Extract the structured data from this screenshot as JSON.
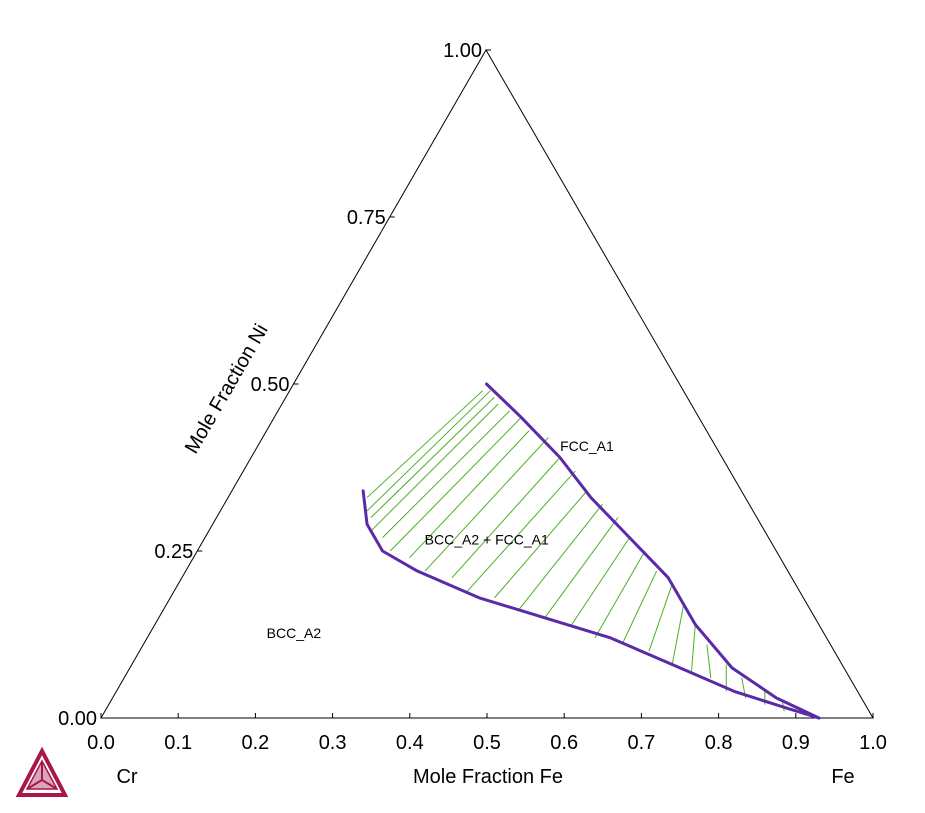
{
  "chart_data": {
    "type": "ternary",
    "components": {
      "left": "Cr",
      "right": "Fe",
      "top": "Ni"
    },
    "bottom_axis": {
      "label": "Mole Fraction Fe",
      "ticks": [
        "0.0",
        "0.1",
        "0.2",
        "0.3",
        "0.4",
        "0.5",
        "0.6",
        "0.7",
        "0.8",
        "0.9",
        "1.0"
      ]
    },
    "left_axis": {
      "label": "Mole Fraction Ni",
      "ticks": [
        "0.00",
        "0.25",
        "0.50",
        "0.75",
        "1.00"
      ]
    },
    "regions": [
      {
        "label": "FCC_A1",
        "fe": 0.43,
        "ni": 0.4
      },
      {
        "label": "BCC_A2 + FCC_A1",
        "fe": 0.37,
        "ni": 0.26
      },
      {
        "label": "BCC_A2",
        "fe": 0.19,
        "ni": 0.12
      }
    ],
    "series": [
      {
        "name": "FCC_A1 phase boundary",
        "color": "#5b2aa8",
        "points": [
          [
            0.25,
            0.5
          ],
          [
            0.32,
            0.45
          ],
          [
            0.4,
            0.39
          ],
          [
            0.47,
            0.33
          ],
          [
            0.55,
            0.27
          ],
          [
            0.63,
            0.21
          ],
          [
            0.7,
            0.14
          ],
          [
            0.78,
            0.075
          ],
          [
            0.86,
            0.03
          ],
          [
            0.93,
            0.0
          ]
        ]
      },
      {
        "name": "BCC_A2 phase boundary",
        "color": "#5b2aa8",
        "points": [
          [
            0.17,
            0.34
          ],
          [
            0.2,
            0.29
          ],
          [
            0.24,
            0.25
          ],
          [
            0.3,
            0.22
          ],
          [
            0.4,
            0.18
          ],
          [
            0.5,
            0.15
          ],
          [
            0.6,
            0.12
          ],
          [
            0.7,
            0.08
          ],
          [
            0.8,
            0.04
          ],
          [
            0.88,
            0.015
          ],
          [
            0.93,
            0.0
          ]
        ]
      }
    ],
    "tie_line_color": "#4caf28",
    "tie_lines": [
      [
        [
          0.18,
          0.33
        ],
        [
          0.25,
          0.49
        ]
      ],
      [
        [
          0.19,
          0.31
        ],
        [
          0.26,
          0.49
        ]
      ],
      [
        [
          0.2,
          0.3
        ],
        [
          0.27,
          0.48
        ]
      ],
      [
        [
          0.21,
          0.28
        ],
        [
          0.28,
          0.47
        ]
      ],
      [
        [
          0.23,
          0.27
        ],
        [
          0.3,
          0.46
        ]
      ],
      [
        [
          0.25,
          0.25
        ],
        [
          0.32,
          0.45
        ]
      ],
      [
        [
          0.28,
          0.24
        ],
        [
          0.34,
          0.43
        ]
      ],
      [
        [
          0.31,
          0.22
        ],
        [
          0.37,
          0.42
        ]
      ],
      [
        [
          0.35,
          0.21
        ],
        [
          0.4,
          0.39
        ]
      ],
      [
        [
          0.38,
          0.19
        ],
        [
          0.43,
          0.37
        ]
      ],
      [
        [
          0.42,
          0.18
        ],
        [
          0.46,
          0.34
        ]
      ],
      [
        [
          0.46,
          0.16
        ],
        [
          0.49,
          0.32
        ]
      ],
      [
        [
          0.5,
          0.15
        ],
        [
          0.52,
          0.3
        ]
      ],
      [
        [
          0.54,
          0.14
        ],
        [
          0.55,
          0.27
        ]
      ],
      [
        [
          0.58,
          0.12
        ],
        [
          0.58,
          0.25
        ]
      ],
      [
        [
          0.62,
          0.11
        ],
        [
          0.61,
          0.22
        ]
      ],
      [
        [
          0.66,
          0.1
        ],
        [
          0.64,
          0.2
        ]
      ],
      [
        [
          0.7,
          0.08
        ],
        [
          0.67,
          0.17
        ]
      ],
      [
        [
          0.73,
          0.07
        ],
        [
          0.7,
          0.14
        ]
      ],
      [
        [
          0.76,
          0.06
        ],
        [
          0.73,
          0.11
        ]
      ],
      [
        [
          0.79,
          0.04
        ],
        [
          0.77,
          0.08
        ]
      ],
      [
        [
          0.82,
          0.03
        ],
        [
          0.8,
          0.06
        ]
      ],
      [
        [
          0.85,
          0.02
        ],
        [
          0.84,
          0.04
        ]
      ],
      [
        [
          0.88,
          0.01
        ],
        [
          0.87,
          0.025
        ]
      ],
      [
        [
          0.91,
          0.004
        ],
        [
          0.9,
          0.012
        ]
      ]
    ],
    "logo_colors": [
      "#a8174a",
      "#d9a7bb"
    ]
  }
}
